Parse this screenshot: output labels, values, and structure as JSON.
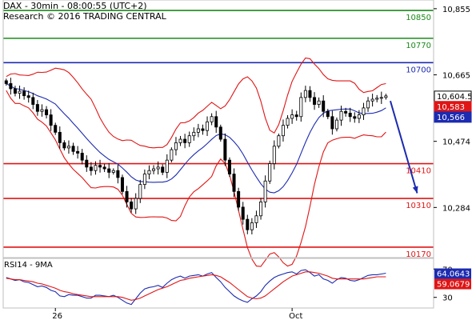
{
  "header": {
    "line1": "DAX - 30min - 08:00:55 (UTC+2)",
    "line2": "Research © 2016 TRADING CENTRAL"
  },
  "chart_data": [
    {
      "type": "candlestick",
      "price_axis": {
        "ylim": [
          10140,
          10880
        ],
        "ticks": [
          10284,
          10474,
          10665,
          10855
        ],
        "tick_labels": [
          "10,284",
          "10,474",
          "10,665",
          "10,855"
        ]
      },
      "x_axis": {
        "tick_labels": [
          "26",
          "Oct"
        ],
        "tick_positions_bar": [
          11,
          64
        ]
      },
      "levels": [
        {
          "value": 10850,
          "label": "10850",
          "color": "#1a8a1a"
        },
        {
          "value": 10770,
          "label": "10770",
          "color": "#1a8a1a"
        },
        {
          "value": 10700,
          "label": "10700",
          "color": "#1c2bb0"
        },
        {
          "value": 10410,
          "label": "10410",
          "color": "#e01515"
        },
        {
          "value": 10310,
          "label": "10310",
          "color": "#e01515"
        },
        {
          "value": 10170,
          "label": "10170",
          "color": "#e01515"
        }
      ],
      "price_tags": [
        {
          "label": "10,604.5",
          "value": 10604.5,
          "bg": "#ffffff",
          "fg": "#000000"
        },
        {
          "label": "10,583",
          "value": 10583,
          "bg": "#e01515",
          "fg": "#ffffff"
        },
        {
          "label": "10,566",
          "value": 10566,
          "bg": "#1c2bb0",
          "fg": "#ffffff"
        }
      ],
      "projection_arrow": {
        "from_bar": 86,
        "from_value": 10590,
        "to_bar": 92,
        "to_value": 10325,
        "color": "#1c2bb0"
      },
      "colors": {
        "bollinger": "#e01515",
        "moving_average": "#1c2bb0",
        "candles": "#000000"
      },
      "close": [
        10640,
        10625,
        10612,
        10618,
        10605,
        10600,
        10580,
        10560,
        10565,
        10550,
        10520,
        10500,
        10470,
        10455,
        10460,
        10445,
        10440,
        10420,
        10400,
        10390,
        10405,
        10400,
        10395,
        10385,
        10390,
        10370,
        10330,
        10300,
        10280,
        10310,
        10350,
        10380,
        10390,
        10395,
        10400,
        10385,
        10420,
        10450,
        10470,
        10480,
        10470,
        10490,
        10500,
        10510,
        10505,
        10530,
        10545,
        10515,
        10480,
        10420,
        10380,
        10330,
        10285,
        10250,
        10220,
        10240,
        10260,
        10300,
        10360,
        10410,
        10460,
        10490,
        10520,
        10540,
        10550,
        10545,
        10600,
        10620,
        10600,
        10580,
        10590,
        10560,
        10545,
        10510,
        10535,
        10560,
        10555,
        10545,
        10540,
        10550,
        10570,
        10590,
        10595,
        10598,
        10600,
        10604.5
      ]
    },
    {
      "type": "line",
      "title": "RSI14 - 9MA",
      "ylim": [
        15,
        85
      ],
      "ticks": [
        30,
        70
      ],
      "tick_labels": [
        "30",
        "70"
      ],
      "series": [
        {
          "color": "#1c2bb0",
          "values": [
            58,
            56,
            54,
            55,
            52,
            51,
            48,
            45,
            46,
            44,
            40,
            38,
            32,
            31,
            34,
            33,
            33,
            31,
            29,
            29,
            33,
            33,
            32,
            31,
            33,
            30,
            26,
            22,
            20,
            28,
            36,
            42,
            44,
            45,
            47,
            44,
            50,
            55,
            58,
            60,
            57,
            60,
            61,
            62,
            60,
            63,
            65,
            58,
            52,
            44,
            38,
            32,
            28,
            25,
            23,
            28,
            32,
            38,
            47,
            53,
            58,
            61,
            63,
            65,
            66,
            63,
            68,
            69,
            65,
            60,
            62,
            56,
            54,
            50,
            55,
            58,
            57,
            54,
            53,
            55,
            58,
            61,
            62,
            62,
            63,
            64.06
          ]
        },
        {
          "color": "#e01515",
          "values": [
            57,
            56,
            55,
            55,
            54,
            53,
            52,
            50,
            49,
            47,
            45,
            43,
            40,
            38,
            37,
            35,
            34,
            33,
            32,
            31,
            31,
            31,
            31,
            31,
            31,
            31,
            30,
            28,
            26,
            27,
            29,
            32,
            35,
            38,
            41,
            43,
            45,
            48,
            51,
            54,
            55,
            57,
            58,
            59,
            60,
            61,
            62,
            61,
            59,
            55,
            51,
            46,
            41,
            36,
            31,
            29,
            28,
            29,
            32,
            37,
            42,
            47,
            52,
            56,
            60,
            62,
            64,
            66,
            66,
            65,
            64,
            62,
            60,
            57,
            56,
            56,
            56,
            56,
            56,
            56,
            56,
            57,
            58,
            59,
            59,
            59.07
          ]
        }
      ],
      "value_tags": [
        {
          "label": "64.0643",
          "value": 64.06,
          "bg": "#1c2bb0",
          "fg": "#ffffff"
        },
        {
          "label": "59.0679",
          "value": 59.07,
          "bg": "#e01515",
          "fg": "#ffffff"
        }
      ]
    }
  ]
}
